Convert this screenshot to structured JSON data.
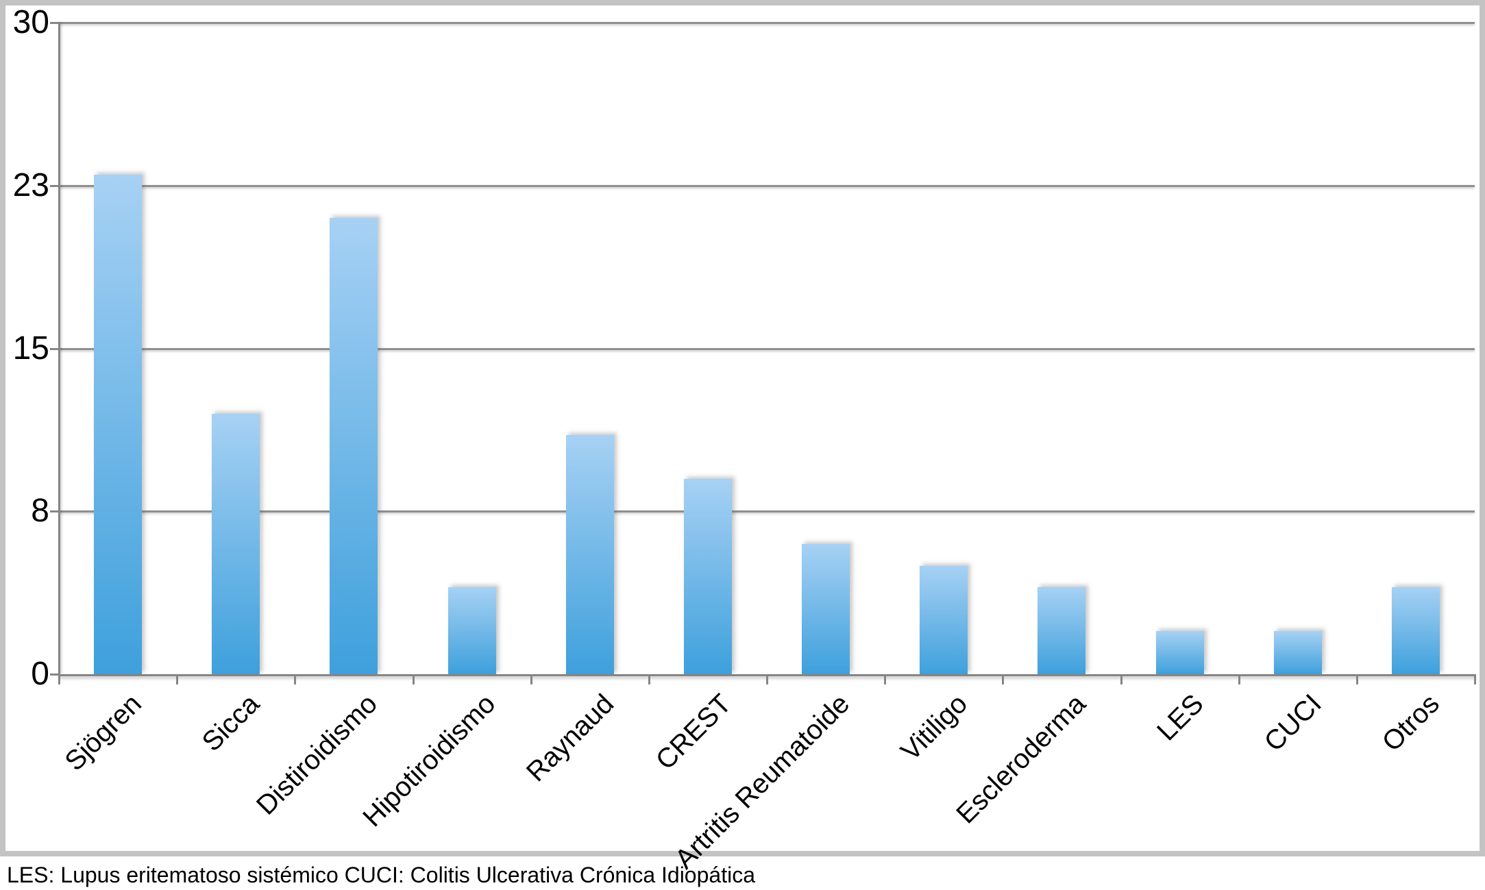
{
  "chart_data": {
    "type": "bar",
    "title": "",
    "xlabel": "",
    "ylabel": "",
    "categories": [
      "Sjögren",
      "Sicca",
      "Distiroidismo",
      "Hipotiroidismo",
      "Raynaud",
      "CREST",
      "Artritis Reumatoide",
      "Vitiligo",
      "Escleroderma",
      "LES",
      "CUCI",
      "Otros"
    ],
    "values": [
      23,
      12,
      21,
      4,
      11,
      9,
      6,
      5,
      4,
      2,
      2,
      4
    ],
    "ylim": [
      0,
      30
    ],
    "yticks": [
      {
        "label": "0",
        "value": 0
      },
      {
        "label": "8",
        "value": 7.5
      },
      {
        "label": "15",
        "value": 15
      },
      {
        "label": "23",
        "value": 22.5
      },
      {
        "label": "30",
        "value": 30
      }
    ],
    "grid": "horizontal",
    "legend": "none",
    "x_label_rotation_deg": -45,
    "colors": {
      "bar_gradient_top": "#a7d1f4",
      "bar_gradient_bottom": "#3ea0dc",
      "gridline": "#8f8f8f",
      "axis": "#858585",
      "frame_border": "#c3c3c3",
      "background": "#ffffff",
      "text": "#000000"
    }
  },
  "footer": {
    "note": "LES: Lupus eritematoso sistémico  CUCI: Colitis Ulcerativa Crónica Idiopática"
  }
}
